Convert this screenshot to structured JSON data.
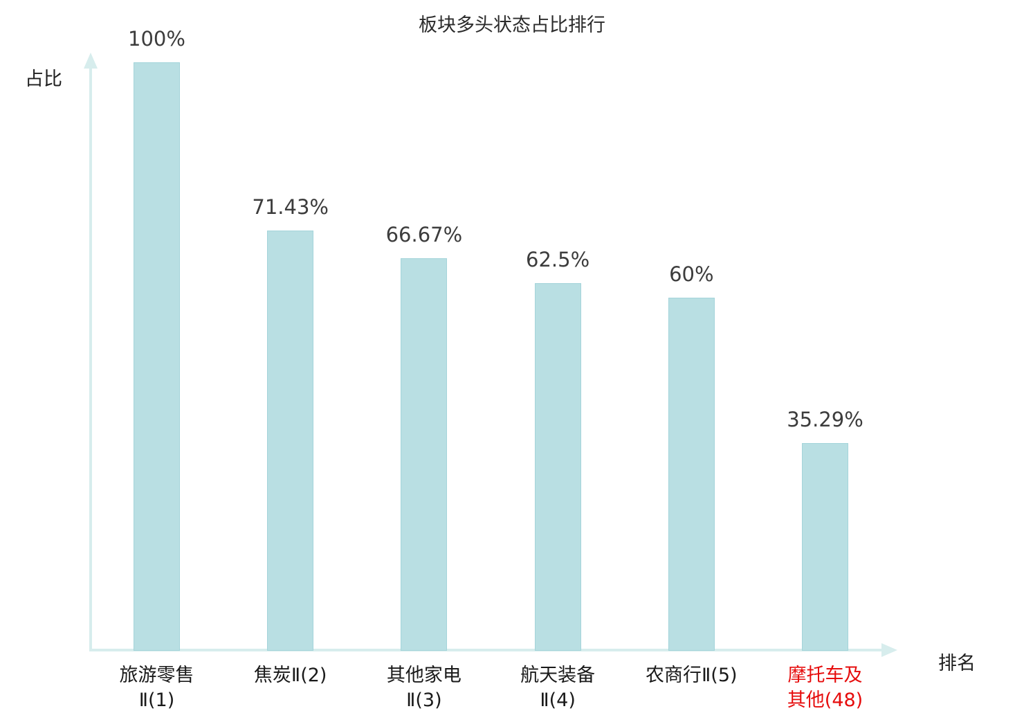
{
  "title": "板块多头状态占比排行",
  "ylabel": "占比",
  "xlabel": "排名",
  "colors": {
    "bar_fill": "#b9dfe3",
    "bar_border": "#a4d4da",
    "axis": "#d7eded",
    "value_text": "#3c3c3c",
    "category_text": "#1a1a1a",
    "highlight_text": "#e60c0c"
  },
  "chart_data": {
    "type": "bar",
    "title": "板块多头状态占比排行",
    "xlabel": "排名",
    "ylabel": "占比",
    "ylim": [
      0,
      100
    ],
    "grid": false,
    "legend": false,
    "categories": [
      "旅游零售Ⅱ(1)",
      "焦炭Ⅱ(2)",
      "其他家电Ⅱ(3)",
      "航天装备Ⅱ(4)",
      "农商行Ⅱ(5)",
      "摩托车及其他(48)"
    ],
    "category_lines": [
      [
        "旅游零售",
        "Ⅱ(1)"
      ],
      [
        "焦炭Ⅱ(2)"
      ],
      [
        "其他家电",
        "Ⅱ(3)"
      ],
      [
        "航天装备",
        "Ⅱ(4)"
      ],
      [
        "农商行Ⅱ(5)"
      ],
      [
        "摩托车及",
        "其他(48)"
      ]
    ],
    "values": [
      100,
      71.43,
      66.67,
      62.5,
      60,
      35.29
    ],
    "value_labels": [
      "100%",
      "71.43%",
      "66.67%",
      "62.5%",
      "60%",
      "35.29%"
    ],
    "highlighted_index": 5,
    "highlight_meaning": "last-ranked category shown in red"
  }
}
